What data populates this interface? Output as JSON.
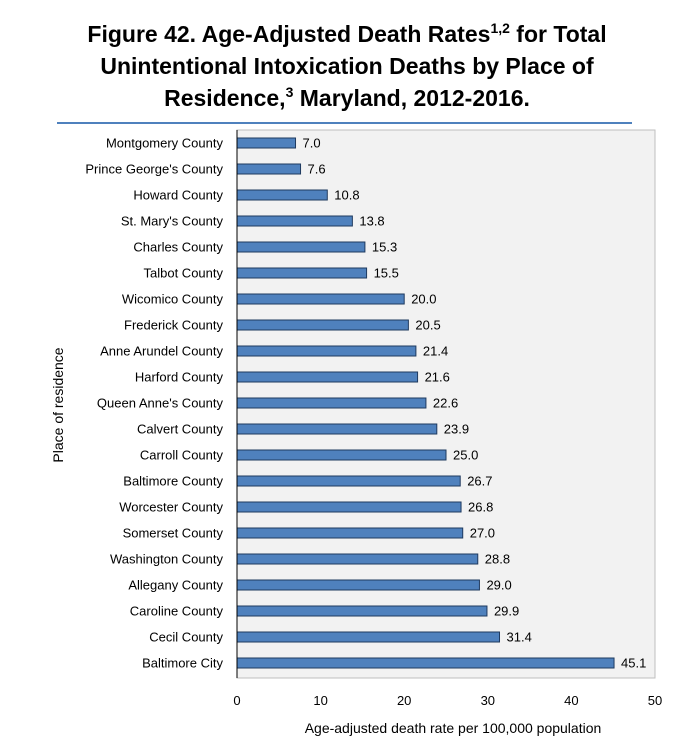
{
  "title": {
    "prefix": "Figure 42. Age-Adjusted Death Rates",
    "sup1": "1,2",
    "line1_suffix": " for Total",
    "line2": "Unintentional Intoxication Deaths by Place of",
    "line3_prefix": "Residence,",
    "sup2": "3",
    "line3_suffix": " Maryland, 2012-2016."
  },
  "chart_data": {
    "type": "bar",
    "orientation": "horizontal",
    "categories": [
      "Montgomery County",
      "Prince George's County",
      "Howard County",
      "St. Mary's County",
      "Charles County",
      "Talbot County",
      "Wicomico County",
      "Frederick County",
      "Anne Arundel County",
      "Harford County",
      "Queen Anne's County",
      "Calvert County",
      "Carroll County",
      "Baltimore County",
      "Worcester County",
      "Somerset County",
      "Washington County",
      "Allegany County",
      "Caroline County",
      "Cecil County",
      "Baltimore City"
    ],
    "values": [
      7.0,
      7.6,
      10.8,
      13.8,
      15.3,
      15.5,
      20.0,
      20.5,
      21.4,
      21.6,
      22.6,
      23.9,
      25.0,
      26.7,
      26.8,
      27.0,
      28.8,
      29.0,
      29.9,
      31.4,
      45.1
    ],
    "value_labels": [
      "7.0",
      "7.6",
      "10.8",
      "13.8",
      "15.3",
      "15.5",
      "20.0",
      "20.5",
      "21.4",
      "21.6",
      "22.6",
      "23.9",
      "25.0",
      "26.7",
      "26.8",
      "27.0",
      "28.8",
      "29.0",
      "29.9",
      "31.4",
      "45.1"
    ],
    "xlabel": "Age-adjusted death rate per 100,000 population",
    "ylabel": "Place of residence",
    "xlim": [
      0,
      50
    ],
    "xticks": [
      0,
      10,
      20,
      30,
      40,
      50
    ],
    "grid": false,
    "colors": {
      "bar_fill": "#4f81bd",
      "bar_stroke": "#1f3a5f",
      "plot_bg": "#f2f2f2",
      "rule": "#4f81bd"
    }
  }
}
